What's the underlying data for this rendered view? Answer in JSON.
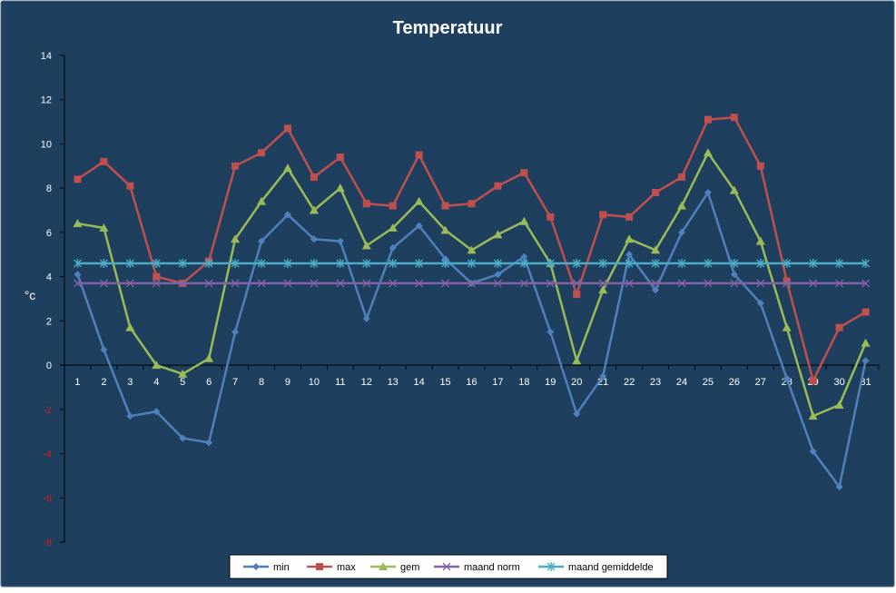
{
  "chart_data": {
    "type": "line",
    "title": "Temperatuur",
    "xlabel": "",
    "ylabel": "°c",
    "categories": [
      "1",
      "2",
      "3",
      "4",
      "5",
      "6",
      "7",
      "8",
      "9",
      "10",
      "11",
      "12",
      "13",
      "14",
      "15",
      "16",
      "17",
      "18",
      "19",
      "20",
      "21",
      "22",
      "23",
      "24",
      "25",
      "26",
      "27",
      "28",
      "29",
      "30",
      "31"
    ],
    "ylim": [
      -8,
      14
    ],
    "yticks": [
      "14",
      "12",
      "10",
      "8",
      "6",
      "4",
      "2",
      "0",
      "-2",
      "-4",
      "-6",
      "-8"
    ],
    "grid": false,
    "legend_position": "bottom",
    "series": [
      {
        "name": "min",
        "color": "#4f81bd",
        "marker": "diamond",
        "values": [
          4.1,
          0.7,
          -2.3,
          -2.1,
          -3.3,
          -3.5,
          1.5,
          5.6,
          6.8,
          5.7,
          5.6,
          2.1,
          5.3,
          6.3,
          4.8,
          3.7,
          4.1,
          4.9,
          1.5,
          -2.2,
          -0.5,
          5.0,
          3.4,
          6.0,
          7.8,
          4.1,
          2.8,
          -0.6,
          -3.9,
          -5.5,
          0.2
        ]
      },
      {
        "name": "max",
        "color": "#c0504d",
        "marker": "square",
        "values": [
          8.4,
          9.2,
          8.1,
          4.0,
          3.7,
          4.7,
          9.0,
          9.6,
          10.7,
          8.5,
          9.4,
          7.3,
          7.2,
          9.5,
          7.2,
          7.3,
          8.1,
          8.7,
          6.7,
          3.2,
          6.8,
          6.7,
          7.8,
          8.5,
          11.1,
          11.2,
          9.0,
          3.8,
          -0.7,
          1.7,
          2.4
        ]
      },
      {
        "name": "gem",
        "color": "#9bbb59",
        "marker": "triangle",
        "values": [
          6.4,
          6.2,
          1.7,
          0.0,
          -0.4,
          0.3,
          5.7,
          7.4,
          8.9,
          7.0,
          8.0,
          5.4,
          6.2,
          7.4,
          6.1,
          5.2,
          5.9,
          6.5,
          4.6,
          0.2,
          3.4,
          5.7,
          5.2,
          7.2,
          9.6,
          7.9,
          5.6,
          1.7,
          -2.3,
          -1.8,
          1.0
        ]
      },
      {
        "name": "maand norm",
        "color": "#8064a2",
        "marker": "x",
        "values": [
          3.7,
          3.7,
          3.7,
          3.7,
          3.7,
          3.7,
          3.7,
          3.7,
          3.7,
          3.7,
          3.7,
          3.7,
          3.7,
          3.7,
          3.7,
          3.7,
          3.7,
          3.7,
          3.7,
          3.7,
          3.7,
          3.7,
          3.7,
          3.7,
          3.7,
          3.7,
          3.7,
          3.7,
          3.7,
          3.7,
          3.7
        ]
      },
      {
        "name": "maand gemiddelde",
        "color": "#4bacc6",
        "marker": "star",
        "values": [
          4.6,
          4.6,
          4.6,
          4.6,
          4.6,
          4.6,
          4.6,
          4.6,
          4.6,
          4.6,
          4.6,
          4.6,
          4.6,
          4.6,
          4.6,
          4.6,
          4.6,
          4.6,
          4.6,
          4.6,
          4.6,
          4.6,
          4.6,
          4.6,
          4.6,
          4.6,
          4.6,
          4.6,
          4.6,
          4.6,
          4.6
        ]
      }
    ],
    "colors": {
      "background": "#1f3f5f",
      "text": "#ffffff",
      "negative_tick": "#cc2222",
      "axis": "#000000"
    }
  }
}
